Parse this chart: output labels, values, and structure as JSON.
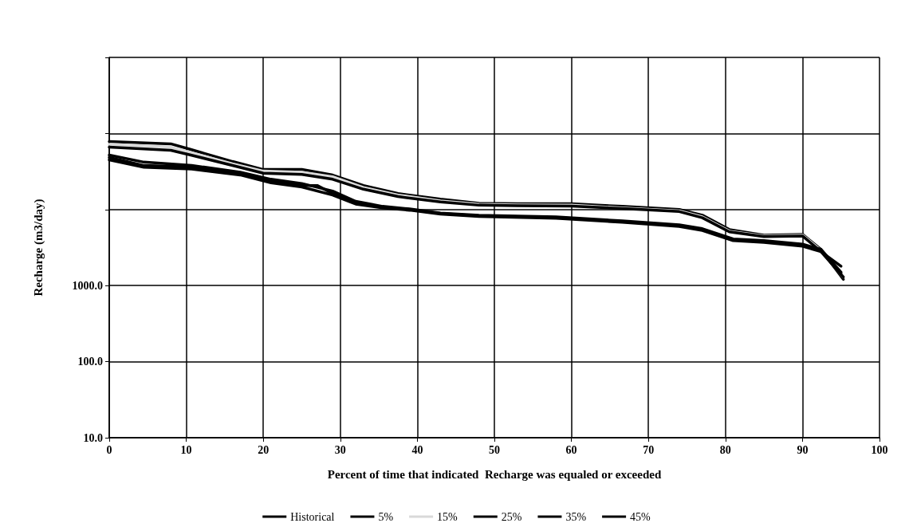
{
  "chart_data": {
    "type": "line",
    "xlabel": "Percent of time that indicated  Recharge was equaled or exceeded",
    "ylabel": "Recharge (m3/day)",
    "log": "y",
    "grid": true,
    "legend": "bottom",
    "marker": "none",
    "line_style": "solid",
    "xlim": [
      0,
      100
    ],
    "xticks": [
      0,
      10,
      20,
      30,
      40,
      50,
      60,
      70,
      80,
      90,
      100
    ],
    "ylim": [
      10,
      1000000
    ],
    "yticks": [
      {
        "value": 10,
        "label": "10.0"
      },
      {
        "value": 100,
        "label": "100.0"
      },
      {
        "value": 1000,
        "label": "1000.0"
      },
      {
        "value": 10000,
        "label": null
      },
      {
        "value": 100000,
        "label": null
      },
      {
        "value": 1000000,
        "label": null
      }
    ],
    "series": [
      {
        "name": "Historical",
        "color": "#000000",
        "x": [
          0,
          4.5,
          10.7,
          17,
          21,
          25,
          27,
          29,
          32,
          35.5,
          39,
          43,
          48,
          58,
          66.6,
          74,
          77,
          81,
          85,
          90,
          92.4,
          95
        ],
        "values": [
          48300,
          37900,
          36100,
          29800,
          23400,
          20700,
          20700,
          16200,
          12100,
          10800,
          10000,
          8860,
          8240,
          7850,
          6950,
          6150,
          5460,
          4000,
          3790,
          3360,
          2900,
          1440
        ]
      },
      {
        "name": "5%",
        "color": "#000000",
        "x": [
          0,
          8,
          10.6,
          16,
          20,
          25,
          29,
          33,
          37.5,
          43,
          48,
          53,
          60,
          66.6,
          74,
          77,
          80.5,
          85,
          90,
          92.4,
          95.3
        ],
        "values": [
          78500,
          73000,
          61500,
          42800,
          33600,
          33600,
          28400,
          20700,
          16200,
          13700,
          12100,
          11900,
          11900,
          11000,
          10000,
          8440,
          5460,
          4600,
          4720,
          2980,
          1210
        ]
      },
      {
        "name": "15%",
        "color": "#d9d9d9",
        "x": [
          0,
          8,
          10.6,
          16,
          20,
          25,
          29,
          33,
          37.5,
          43,
          48,
          53,
          60,
          66.6,
          74,
          77,
          80.5,
          85,
          90,
          92.4,
          95.3
        ],
        "values": [
          72000,
          66000,
          56000,
          40000,
          32000,
          31000,
          27000,
          19500,
          15500,
          13000,
          11700,
          11500,
          11400,
          10500,
          9600,
          8000,
          5200,
          4500,
          4600,
          2900,
          1300
        ]
      },
      {
        "name": "25%",
        "color": "#000000",
        "x": [
          0,
          8,
          10.6,
          16,
          20,
          25,
          29,
          33,
          37.5,
          43,
          48,
          53,
          60,
          66.6,
          74,
          77,
          80.5,
          85,
          90,
          92.4,
          95.3
        ],
        "values": [
          66000,
          60000,
          52000,
          38000,
          30000,
          29000,
          25000,
          18500,
          14800,
          12600,
          11400,
          11200,
          11100,
          10300,
          9400,
          7800,
          5100,
          4400,
          4500,
          2800,
          1300
        ]
      },
      {
        "name": "35%",
        "color": "#000000",
        "x": [
          0,
          4.5,
          10.7,
          17,
          21,
          25,
          29,
          32,
          35.5,
          39,
          43,
          48,
          58,
          66.6,
          74,
          77,
          81,
          85,
          90,
          92.4,
          95
        ],
        "values": [
          52000,
          42000,
          38000,
          31000,
          25000,
          22000,
          17500,
          12800,
          11000,
          10200,
          9000,
          8400,
          8000,
          7100,
          6300,
          5600,
          4100,
          3900,
          3500,
          3000,
          1500
        ]
      },
      {
        "name": "45%",
        "color": "#000000",
        "x": [
          0,
          4.5,
          10.7,
          17,
          21,
          25,
          29,
          32,
          35.5,
          39,
          43,
          48,
          58,
          66.6,
          74,
          77,
          81,
          85,
          90,
          92.4,
          95
        ],
        "values": [
          45000,
          36000,
          34000,
          28500,
          22500,
          19800,
          15500,
          11800,
          10500,
          9800,
          8700,
          8100,
          7700,
          6800,
          6000,
          5300,
          3900,
          3700,
          3300,
          2800,
          1800
        ]
      }
    ]
  }
}
